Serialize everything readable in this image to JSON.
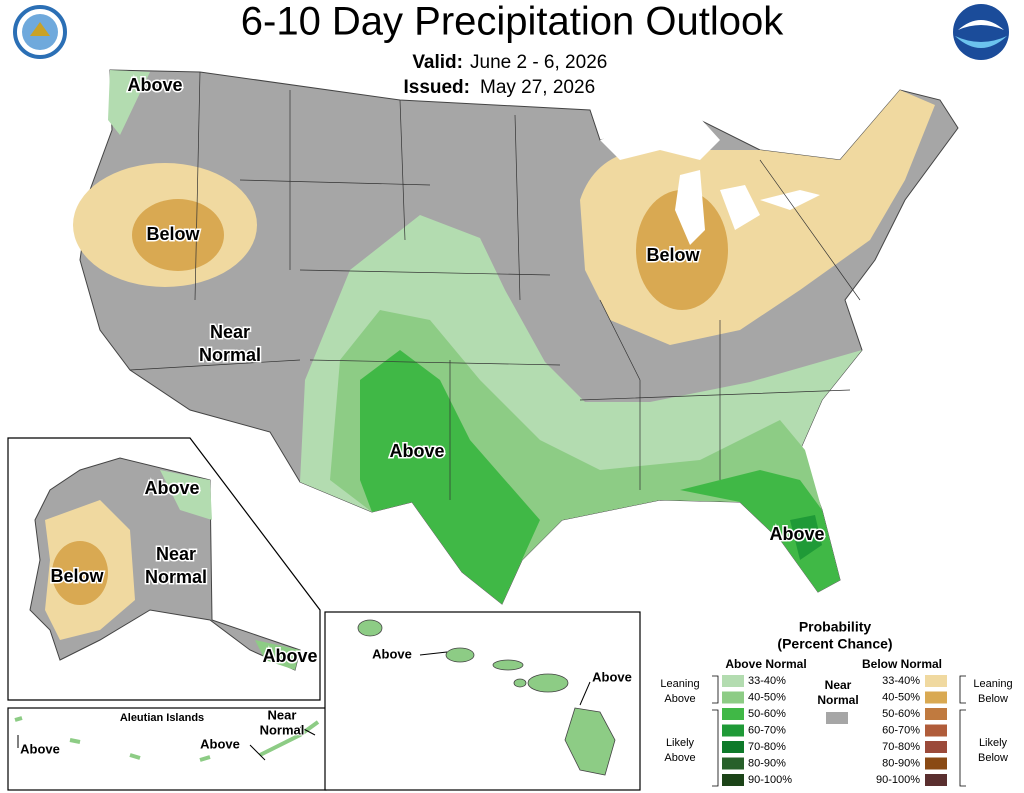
{
  "header": {
    "title": "6-10 Day Precipitation Outlook",
    "valid_label": "Valid:",
    "valid": "June 2 - 6, 2026",
    "issued_label": "Issued:",
    "issued": "May 27, 2026"
  },
  "map_labels": [
    {
      "lines": [
        "Above"
      ]
    },
    {
      "lines": [
        "Below"
      ]
    },
    {
      "lines": [
        "Near",
        "Normal"
      ]
    },
    {
      "lines": [
        "Below"
      ]
    },
    {
      "lines": [
        "Above"
      ]
    },
    {
      "lines": [
        "Above"
      ]
    },
    {
      "lines": [
        "Above"
      ]
    },
    {
      "lines": [
        "Below"
      ]
    },
    {
      "lines": [
        "Near",
        "Normal"
      ]
    },
    {
      "lines": [
        "Above"
      ]
    },
    {
      "lines": [
        "Above"
      ]
    },
    {
      "lines": [
        "Above"
      ]
    },
    {
      "lines": [
        "Near",
        "Normal"
      ]
    },
    {
      "lines": [
        "Above"
      ]
    },
    {
      "lines": [
        "Above"
      ]
    }
  ],
  "aleutian_title": "Aleutian Islands",
  "legend": {
    "title": [
      "Probability",
      "(Percent Chance)"
    ],
    "above_title": "Above Normal",
    "below_title": "Below Normal",
    "above": [
      {
        "label": "33-40%",
        "color": "#b3dcb0"
      },
      {
        "label": "40-50%",
        "color": "#8dcc85"
      },
      {
        "label": "50-60%",
        "color": "#40b846"
      },
      {
        "label": "60-70%",
        "color": "#1f9a37"
      },
      {
        "label": "70-80%",
        "color": "#0e7a2a"
      },
      {
        "label": "80-90%",
        "color": "#27602a"
      },
      {
        "label": "90-100%",
        "color": "#1c4418"
      }
    ],
    "below": [
      {
        "label": "33-40%",
        "color": "#f0d9a0"
      },
      {
        "label": "40-50%",
        "color": "#d9a952"
      },
      {
        "label": "50-60%",
        "color": "#c07a3f"
      },
      {
        "label": "60-70%",
        "color": "#b05c3a"
      },
      {
        "label": "70-80%",
        "color": "#9b4a3a"
      },
      {
        "label": "80-90%",
        "color": "#8a4a14"
      },
      {
        "label": "90-100%",
        "color": "#5a2f2f"
      }
    ],
    "near": {
      "lines": [
        "Near",
        "Normal"
      ],
      "color": "#a6a6a6"
    },
    "leaning_above": [
      "Leaning",
      "Above"
    ],
    "likely_above": [
      "Likely",
      "Above"
    ],
    "leaning_below": [
      "Leaning",
      "Below"
    ],
    "likely_below": [
      "Likely",
      "Below"
    ]
  }
}
